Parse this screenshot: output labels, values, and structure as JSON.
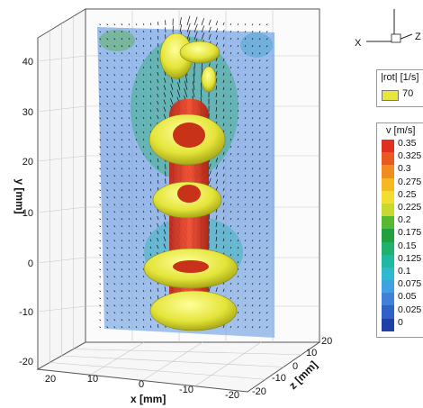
{
  "axes": {
    "x_label": "x [mm]",
    "y_label": "y [mm]",
    "z_label": "z [mm]",
    "x_ticks": [
      "20",
      "10",
      "0",
      "-10",
      "-20"
    ],
    "y_ticks": [
      "40",
      "30",
      "20",
      "10",
      "0",
      "-10",
      "-20"
    ],
    "z_ticks": [
      "20",
      "10",
      "0",
      "-10",
      "-20"
    ]
  },
  "orientation": {
    "x": "X",
    "z": "Z"
  },
  "iso_legend": {
    "title": "|rot| [1/s]",
    "value": "70",
    "color": "#e6e63c"
  },
  "v_legend": {
    "title": "v [m/s]",
    "levels": [
      "0.35",
      "0.325",
      "0.3",
      "0.275",
      "0.25",
      "0.225",
      "0.2",
      "0.175",
      "0.15",
      "0.125",
      "0.1",
      "0.075",
      "0.05",
      "0.025",
      "0"
    ],
    "colors": [
      "#e03020",
      "#e85a20",
      "#f08c20",
      "#f5b820",
      "#f5dc30",
      "#c8d830",
      "#58b830",
      "#20a040",
      "#20b070",
      "#20b8a0",
      "#30b8d0",
      "#40a0e0",
      "#4080d8",
      "#3060c8",
      "#2040a8"
    ]
  }
}
